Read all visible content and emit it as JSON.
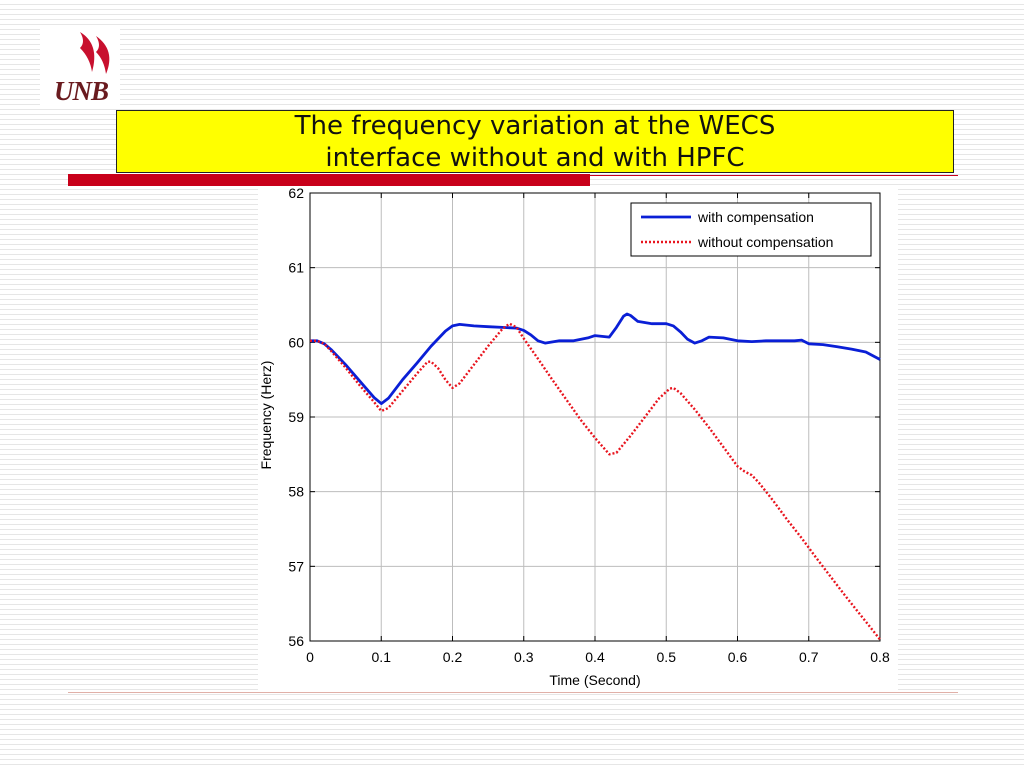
{
  "logo": {
    "text": "UNB",
    "colors": {
      "crimson": "#c8102e",
      "text": "#6a1b1f"
    }
  },
  "slide": {
    "title_line1": "The frequency variation at the WECS",
    "title_line2": "interface without and with HPFC"
  },
  "colors": {
    "title_bg": "#ffff00",
    "accent_bar": "#c8001a",
    "with_comp": "#0a1fd6",
    "without_comp": "#e8141e"
  },
  "chart_data": {
    "type": "line",
    "title": "",
    "xlabel": "Time (Second)",
    "ylabel": "Frequency (Herz)",
    "xlim": [
      0,
      0.8
    ],
    "ylim": [
      56,
      62
    ],
    "xticks": [
      "0",
      "0.1",
      "0.2",
      "0.3",
      "0.4",
      "0.5",
      "0.6",
      "0.7",
      "0.8"
    ],
    "yticks": [
      "56",
      "57",
      "58",
      "59",
      "60",
      "61",
      "62"
    ],
    "grid": true,
    "legend_placement": "top-right",
    "series": [
      {
        "name": "with compensation",
        "style": "solid",
        "color": "#0a1fd6",
        "points": [
          [
            0,
            60.02
          ],
          [
            0.01,
            60.02
          ],
          [
            0.02,
            59.98
          ],
          [
            0.03,
            59.9
          ],
          [
            0.05,
            59.7
          ],
          [
            0.07,
            59.48
          ],
          [
            0.09,
            59.26
          ],
          [
            0.1,
            59.18
          ],
          [
            0.11,
            59.25
          ],
          [
            0.13,
            59.5
          ],
          [
            0.15,
            59.72
          ],
          [
            0.17,
            59.95
          ],
          [
            0.19,
            60.15
          ],
          [
            0.2,
            60.22
          ],
          [
            0.21,
            60.24
          ],
          [
            0.23,
            60.22
          ],
          [
            0.25,
            60.21
          ],
          [
            0.27,
            60.2
          ],
          [
            0.29,
            60.19
          ],
          [
            0.3,
            60.16
          ],
          [
            0.31,
            60.1
          ],
          [
            0.32,
            60.02
          ],
          [
            0.33,
            59.99
          ],
          [
            0.35,
            60.02
          ],
          [
            0.37,
            60.02
          ],
          [
            0.39,
            60.06
          ],
          [
            0.4,
            60.09
          ],
          [
            0.41,
            60.08
          ],
          [
            0.42,
            60.07
          ],
          [
            0.43,
            60.2
          ],
          [
            0.44,
            60.35
          ],
          [
            0.445,
            60.38
          ],
          [
            0.45,
            60.36
          ],
          [
            0.46,
            60.28
          ],
          [
            0.48,
            60.25
          ],
          [
            0.5,
            60.25
          ],
          [
            0.51,
            60.22
          ],
          [
            0.52,
            60.14
          ],
          [
            0.53,
            60.04
          ],
          [
            0.54,
            59.99
          ],
          [
            0.55,
            60.02
          ],
          [
            0.56,
            60.07
          ],
          [
            0.58,
            60.06
          ],
          [
            0.6,
            60.02
          ],
          [
            0.62,
            60.01
          ],
          [
            0.64,
            60.02
          ],
          [
            0.66,
            60.02
          ],
          [
            0.68,
            60.02
          ],
          [
            0.69,
            60.03
          ],
          [
            0.7,
            59.98
          ],
          [
            0.72,
            59.97
          ],
          [
            0.74,
            59.94
          ],
          [
            0.76,
            59.91
          ],
          [
            0.78,
            59.87
          ],
          [
            0.8,
            59.77
          ]
        ]
      },
      {
        "name": "without compensation",
        "style": "dotted",
        "color": "#e8141e",
        "points": [
          [
            0,
            60.02
          ],
          [
            0.01,
            60.02
          ],
          [
            0.02,
            59.98
          ],
          [
            0.03,
            59.88
          ],
          [
            0.05,
            59.66
          ],
          [
            0.07,
            59.42
          ],
          [
            0.09,
            59.2
          ],
          [
            0.1,
            59.08
          ],
          [
            0.11,
            59.12
          ],
          [
            0.13,
            59.35
          ],
          [
            0.15,
            59.58
          ],
          [
            0.165,
            59.74
          ],
          [
            0.17,
            59.74
          ],
          [
            0.18,
            59.65
          ],
          [
            0.19,
            59.5
          ],
          [
            0.2,
            59.39
          ],
          [
            0.21,
            59.45
          ],
          [
            0.23,
            59.7
          ],
          [
            0.25,
            59.95
          ],
          [
            0.27,
            60.18
          ],
          [
            0.28,
            60.25
          ],
          [
            0.29,
            60.2
          ],
          [
            0.3,
            60.05
          ],
          [
            0.32,
            59.78
          ],
          [
            0.34,
            59.5
          ],
          [
            0.36,
            59.23
          ],
          [
            0.38,
            58.96
          ],
          [
            0.4,
            58.72
          ],
          [
            0.42,
            58.5
          ],
          [
            0.43,
            58.52
          ],
          [
            0.45,
            58.75
          ],
          [
            0.47,
            59.0
          ],
          [
            0.49,
            59.25
          ],
          [
            0.505,
            59.38
          ],
          [
            0.51,
            59.39
          ],
          [
            0.52,
            59.32
          ],
          [
            0.54,
            59.1
          ],
          [
            0.56,
            58.86
          ],
          [
            0.58,
            58.6
          ],
          [
            0.6,
            58.34
          ],
          [
            0.61,
            58.27
          ],
          [
            0.62,
            58.22
          ],
          [
            0.63,
            58.12
          ],
          [
            0.65,
            57.88
          ],
          [
            0.67,
            57.62
          ],
          [
            0.69,
            57.38
          ],
          [
            0.71,
            57.12
          ],
          [
            0.73,
            56.87
          ],
          [
            0.75,
            56.62
          ],
          [
            0.77,
            56.38
          ],
          [
            0.79,
            56.14
          ],
          [
            0.8,
            56.02
          ]
        ]
      }
    ]
  }
}
